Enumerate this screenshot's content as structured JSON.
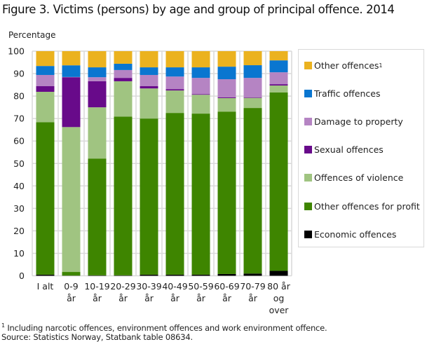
{
  "title": "Figure 3. Victims (persons) by age and group of principal offence. 2014",
  "footnote": "Including narcotic offences, environment offences and work environment offence.",
  "footnote_marker": "1",
  "source": "Source: Statistics Norway, Statbank table 08634.",
  "chart_data": {
    "type": "bar",
    "stacked": true,
    "title": "Figure 3. Victims (persons) by age and group of principal offence. 2014",
    "xlabel": "",
    "ylabel": "Percentage",
    "ylim": [
      0,
      100
    ],
    "yticks": [
      0,
      10,
      20,
      30,
      40,
      50,
      60,
      70,
      80,
      90,
      100
    ],
    "grid": true,
    "legend_position": "right",
    "categories": [
      [
        "I alt"
      ],
      [
        "0-9",
        "år"
      ],
      [
        "10-19",
        "år"
      ],
      [
        "20-29",
        "år"
      ],
      [
        "30-39",
        "år"
      ],
      [
        "40-49",
        "år"
      ],
      [
        "50-59",
        "år"
      ],
      [
        "60-69",
        "år"
      ],
      [
        "70-79",
        "år"
      ],
      [
        "80 år",
        "og",
        "over"
      ]
    ],
    "series": [
      {
        "name": "Economic offences",
        "color": "#000000",
        "values": [
          0.5,
          0.1,
          0.2,
          0.2,
          0.5,
          0.5,
          0.5,
          0.8,
          1.0,
          2.2
        ]
      },
      {
        "name": "Other offences for profit",
        "color": "#3E8500",
        "values": [
          67.9,
          1.6,
          52.0,
          70.7,
          69.5,
          72.0,
          71.7,
          72.3,
          73.7,
          79.4
        ]
      },
      {
        "name": "Offences of violence",
        "color": "#A0C481",
        "values": [
          13.5,
          64.5,
          22.8,
          15.7,
          13.4,
          10.0,
          8.4,
          6.0,
          4.5,
          3.1
        ]
      },
      {
        "name": "Sexual offences",
        "color": "#680A8A",
        "values": [
          2.5,
          22.2,
          11.6,
          1.5,
          1.0,
          0.6,
          0.3,
          0.3,
          0.2,
          0.6
        ]
      },
      {
        "name": "Damage to property",
        "color": "#B584C3",
        "values": [
          5.0,
          0.1,
          1.8,
          3.5,
          5.0,
          5.6,
          7.2,
          8.1,
          8.7,
          5.3
        ]
      },
      {
        "name": "Traffic offences",
        "color": "#0A76D0",
        "values": [
          4.0,
          5.2,
          4.4,
          2.8,
          3.4,
          4.1,
          4.7,
          5.6,
          5.65,
          5.3
        ]
      },
      {
        "name": "Other offences",
        "footnote_marker": "1",
        "color": "#EBB21F",
        "values": [
          6.6,
          6.3,
          7.2,
          5.6,
          7.2,
          7.2,
          7.2,
          6.9,
          6.25,
          4.1
        ]
      }
    ]
  },
  "legend": [
    {
      "label": "Other offences",
      "sup": "1",
      "color": "#EBB21F"
    },
    {
      "label": "Traffic offences",
      "sup": "",
      "color": "#0A76D0"
    },
    {
      "label": "Damage to property",
      "sup": "",
      "color": "#B584C3"
    },
    {
      "label": "Sexual offences",
      "sup": "",
      "color": "#680A8A"
    },
    {
      "label": "Offences of violence",
      "sup": "",
      "color": "#A0C481"
    },
    {
      "label": "Other offences for profit",
      "sup": "",
      "color": "#3E8500"
    },
    {
      "label": "Economic offences",
      "sup": "",
      "color": "#000000"
    }
  ]
}
